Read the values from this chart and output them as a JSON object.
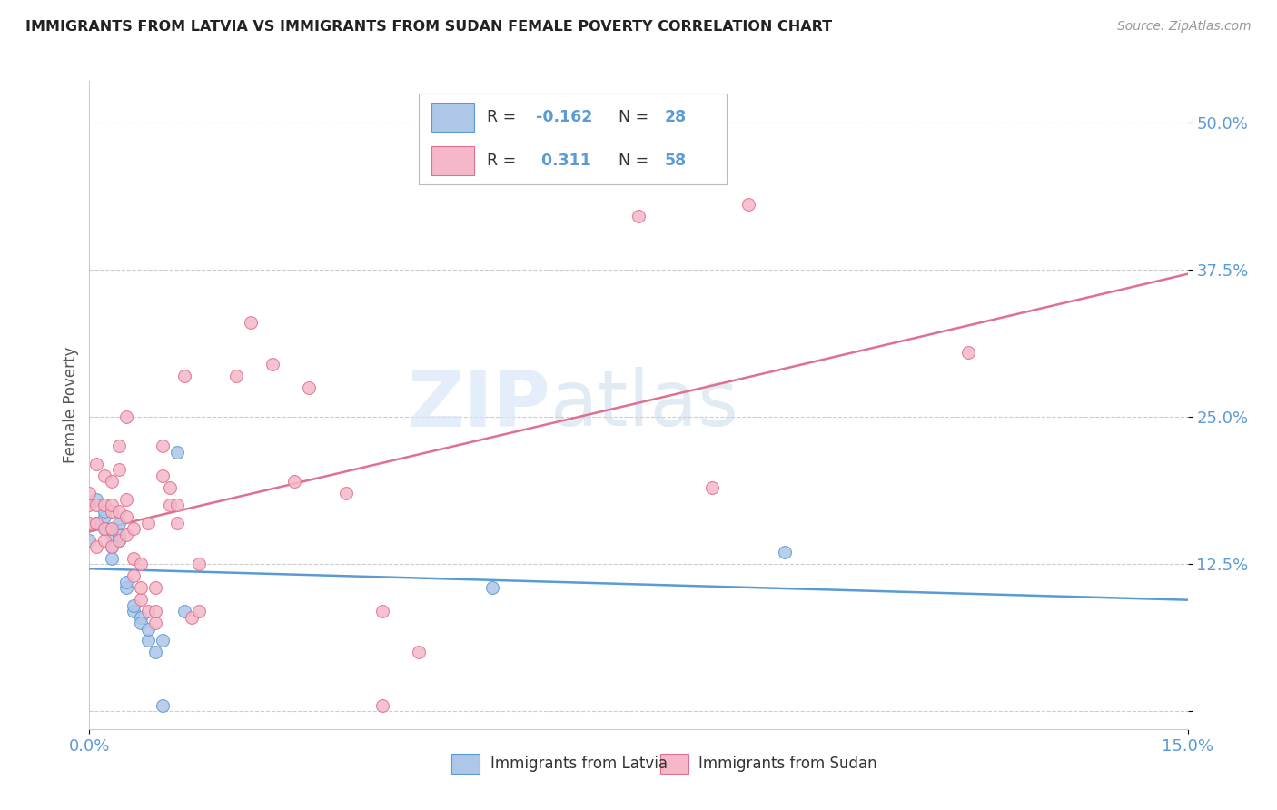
{
  "title": "IMMIGRANTS FROM LATVIA VS IMMIGRANTS FROM SUDAN FEMALE POVERTY CORRELATION CHART",
  "source": "Source: ZipAtlas.com",
  "ylabel": "Female Poverty",
  "y_ticks": [
    0.0,
    0.125,
    0.25,
    0.375,
    0.5
  ],
  "y_tick_labels": [
    "",
    "12.5%",
    "25.0%",
    "37.5%",
    "50.0%"
  ],
  "x_lim": [
    0.0,
    0.15
  ],
  "y_lim": [
    -0.015,
    0.535
  ],
  "latvia_color": "#aec6e8",
  "latvia_line_color": "#5b9bd5",
  "sudan_color": "#f4b8c8",
  "sudan_line_color": "#e07090",
  "R_latvia": -0.162,
  "N_latvia": 28,
  "R_sudan": 0.311,
  "N_sudan": 58,
  "latvia_x": [
    0.0,
    0.001,
    0.001,
    0.002,
    0.002,
    0.002,
    0.003,
    0.003,
    0.003,
    0.003,
    0.004,
    0.004,
    0.004,
    0.005,
    0.005,
    0.006,
    0.006,
    0.007,
    0.007,
    0.008,
    0.008,
    0.009,
    0.01,
    0.01,
    0.012,
    0.013,
    0.055,
    0.095
  ],
  "latvia_y": [
    0.145,
    0.16,
    0.18,
    0.155,
    0.165,
    0.17,
    0.14,
    0.15,
    0.155,
    0.13,
    0.145,
    0.15,
    0.16,
    0.105,
    0.11,
    0.085,
    0.09,
    0.08,
    0.075,
    0.06,
    0.07,
    0.05,
    0.005,
    0.06,
    0.22,
    0.085,
    0.105,
    0.135
  ],
  "sudan_x": [
    0.0,
    0.0,
    0.0,
    0.001,
    0.001,
    0.001,
    0.001,
    0.002,
    0.002,
    0.002,
    0.002,
    0.003,
    0.003,
    0.003,
    0.003,
    0.003,
    0.004,
    0.004,
    0.004,
    0.004,
    0.005,
    0.005,
    0.005,
    0.005,
    0.006,
    0.006,
    0.006,
    0.007,
    0.007,
    0.007,
    0.008,
    0.008,
    0.009,
    0.009,
    0.009,
    0.01,
    0.01,
    0.011,
    0.011,
    0.012,
    0.012,
    0.013,
    0.014,
    0.015,
    0.015,
    0.02,
    0.022,
    0.025,
    0.028,
    0.03,
    0.035,
    0.04,
    0.04,
    0.045,
    0.075,
    0.085,
    0.09,
    0.12
  ],
  "sudan_y": [
    0.16,
    0.175,
    0.185,
    0.14,
    0.16,
    0.175,
    0.21,
    0.145,
    0.155,
    0.175,
    0.2,
    0.14,
    0.155,
    0.17,
    0.175,
    0.195,
    0.145,
    0.17,
    0.205,
    0.225,
    0.15,
    0.165,
    0.18,
    0.25,
    0.115,
    0.13,
    0.155,
    0.095,
    0.105,
    0.125,
    0.085,
    0.16,
    0.075,
    0.085,
    0.105,
    0.2,
    0.225,
    0.175,
    0.19,
    0.16,
    0.175,
    0.285,
    0.08,
    0.085,
    0.125,
    0.285,
    0.33,
    0.295,
    0.195,
    0.275,
    0.185,
    0.005,
    0.085,
    0.05,
    0.42,
    0.19,
    0.43,
    0.305
  ],
  "watermark_zip": "ZIP",
  "watermark_atlas": "atlas",
  "background_color": "#ffffff",
  "grid_color": "#cccccc"
}
